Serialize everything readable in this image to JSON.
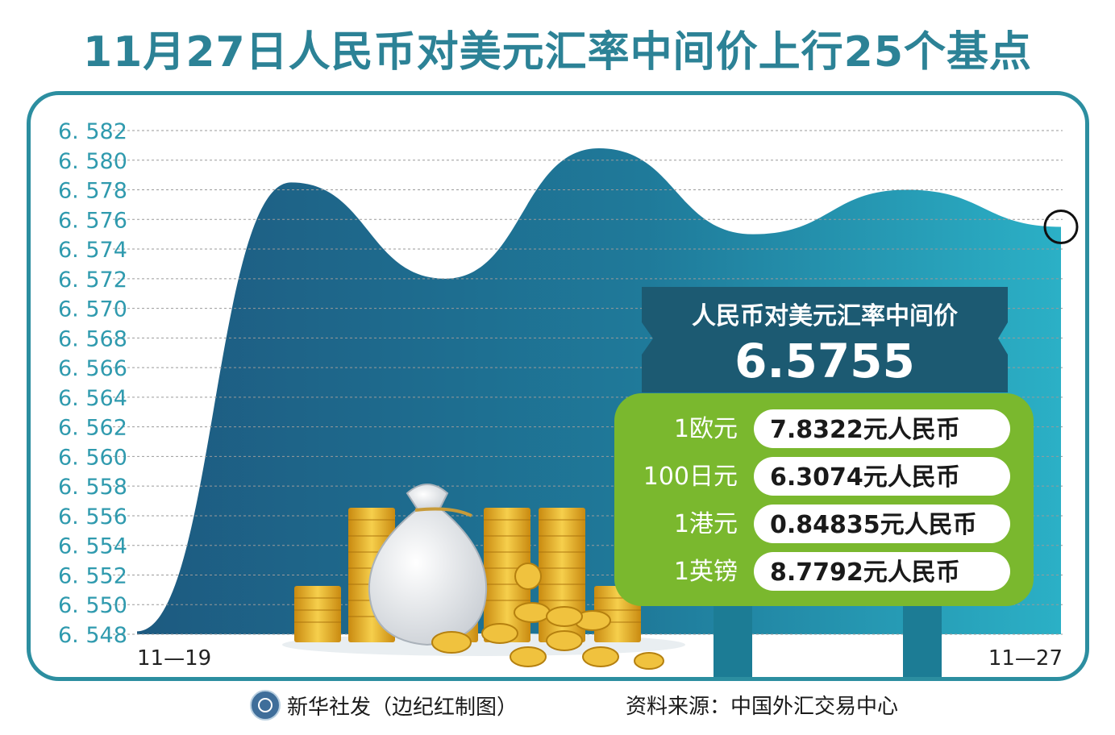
{
  "header": {
    "title": "11月27日人民币对美元汇率中间价上行25个基点"
  },
  "chart_data": {
    "type": "area",
    "title": "11月27日人民币对美元汇率中间价上行25个基点",
    "x_start_label": "11—19",
    "x_end_label": "11—27",
    "y_ticks": [
      "6.582",
      "6.580",
      "6.578",
      "6.576",
      "6.574",
      "6.572",
      "6.570",
      "6.568",
      "6.566",
      "6.564",
      "6.562",
      "6.560",
      "6.558",
      "6.556",
      "6.554",
      "6.552",
      "6.550",
      "6.548"
    ],
    "ylim": [
      6.548,
      6.582
    ],
    "grid": true,
    "series": [
      {
        "values": [
          6.5482,
          6.5785,
          6.572,
          6.5808,
          6.575,
          6.578,
          6.5755
        ]
      }
    ],
    "highlight_last_point": true
  },
  "info_panel": {
    "title": "人民币对美元汇率中间价",
    "value": "6.5755",
    "rates": [
      {
        "label": "1欧元",
        "value": "7.8322元人民币"
      },
      {
        "label": "100日元",
        "value": "6.3074元人民币"
      },
      {
        "label": "1港元",
        "value": "0.84835元人民币"
      },
      {
        "label": "1英镑",
        "value": "8.7792元人民币"
      }
    ]
  },
  "footer": {
    "credit": "新华社发（边纪红制图）",
    "source": "资料来源：中国外汇交易中心"
  },
  "colors": {
    "title": "#2c8296",
    "frame": "#2c8ea0",
    "area_dark": "#1e5f85",
    "area_light": "#2aa3b8",
    "panel_dark": "#1c5a72",
    "panel_green": "#7ab82e",
    "gold": "#e8b22a"
  }
}
